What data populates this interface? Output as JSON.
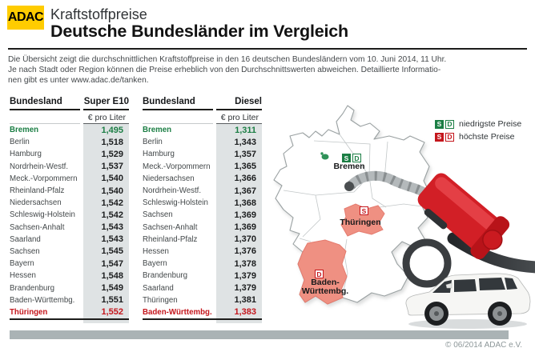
{
  "header": {
    "logo_text": "ADAC",
    "kicker": "Kraftstoffpreise",
    "title": "Deutsche Bundesländer im Vergleich"
  },
  "intro": {
    "lines": [
      "Die Übersicht zeigt die durchschnittlichen Kraftstoffpreise in den 16  deutschen Bundesländern vom  10. Juni 2014, 11 Uhr.",
      "Je nach Stadt oder Region können die Preise erheblich von den Durchschnittswerten abweichen. Detaillierte Informatio-",
      "nen gibt es unter www.adac.de/tanken."
    ]
  },
  "chart_data": [
    {
      "type": "table",
      "title": "Super E10",
      "col_state": "Bundesland",
      "col_price": "Super E10",
      "unit": "€ pro Liter",
      "rows": [
        {
          "state": "Bremen",
          "price": "1,495",
          "highlight": "low"
        },
        {
          "state": "Berlin",
          "price": "1,518"
        },
        {
          "state": "Hamburg",
          "price": "1,529"
        },
        {
          "state": "Nordrhein-Westf.",
          "price": "1,537"
        },
        {
          "state": "Meck.-Vorpommern",
          "price": "1,540"
        },
        {
          "state": "Rheinland-Pfalz",
          "price": "1,540"
        },
        {
          "state": "Niedersachsen",
          "price": "1,542"
        },
        {
          "state": "Schleswig-Holstein",
          "price": "1,542"
        },
        {
          "state": "Sachsen-Anhalt",
          "price": "1,543"
        },
        {
          "state": "Saarland",
          "price": "1,543"
        },
        {
          "state": "Sachsen",
          "price": "1,545"
        },
        {
          "state": "Bayern",
          "price": "1,547"
        },
        {
          "state": "Hessen",
          "price": "1,548"
        },
        {
          "state": "Brandenburg",
          "price": "1,549"
        },
        {
          "state": "Baden-Württembg.",
          "price": "1,551"
        },
        {
          "state": "Thüringen",
          "price": "1,552",
          "highlight": "high"
        }
      ]
    },
    {
      "type": "table",
      "title": "Diesel",
      "col_state": "Bundesland",
      "col_price": "Diesel",
      "unit": "€ pro Liter",
      "rows": [
        {
          "state": "Bremen",
          "price": "1,311",
          "highlight": "low"
        },
        {
          "state": "Berlin",
          "price": "1,343"
        },
        {
          "state": "Hamburg",
          "price": "1,357"
        },
        {
          "state": "Meck.-Vorpommern",
          "price": "1,365"
        },
        {
          "state": "Niedersachsen",
          "price": "1,366"
        },
        {
          "state": "Nordrhein-Westf.",
          "price": "1,367"
        },
        {
          "state": "Schleswig-Holstein",
          "price": "1,368"
        },
        {
          "state": "Sachsen",
          "price": "1,369"
        },
        {
          "state": "Sachsen-Anhalt",
          "price": "1,369"
        },
        {
          "state": "Rheinland-Pfalz",
          "price": "1,370"
        },
        {
          "state": "Hessen",
          "price": "1,376"
        },
        {
          "state": "Bayern",
          "price": "1,378"
        },
        {
          "state": "Brandenburg",
          "price": "1,379"
        },
        {
          "state": "Saarland",
          "price": "1,379"
        },
        {
          "state": "Thüringen",
          "price": "1,381"
        },
        {
          "state": "Baden-Württembg.",
          "price": "1,383",
          "highlight": "high"
        }
      ]
    }
  ],
  "legend": {
    "low": {
      "s": "S",
      "d": "D",
      "label": "niedrigste Preise"
    },
    "high": {
      "s": "S",
      "d": "D",
      "label": "höchste Preise"
    }
  },
  "map": {
    "bremen": {
      "label": "Bremen",
      "s": "S",
      "d": "D"
    },
    "thueringen": {
      "label": "Thüringen",
      "s": "S"
    },
    "baden": {
      "label_line1": "Baden-",
      "label_line2": "Württembg.",
      "d": "D"
    }
  },
  "footer": {
    "copyright": "© 06/2014 ADAC e.V."
  },
  "colors": {
    "adac_yellow": "#ffcc00",
    "green": "#1b7e44",
    "red": "#c4161c",
    "salmon": "#ef9082",
    "salmon_edge": "#e47b6e",
    "price_col_bg": "#dfe3e4",
    "bottom_bar": "#aab3b5"
  }
}
